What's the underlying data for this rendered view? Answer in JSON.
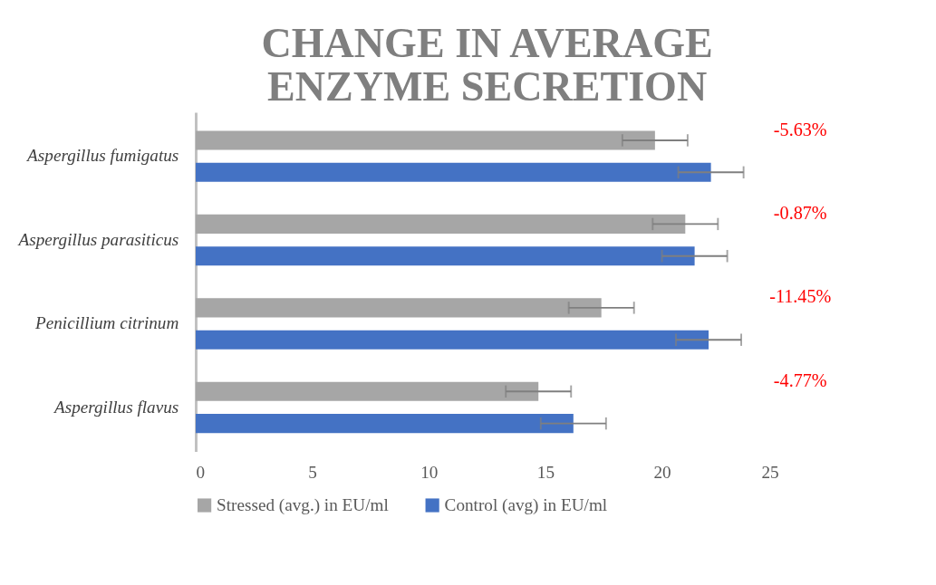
{
  "chart_data": {
    "type": "bar",
    "orientation": "horizontal",
    "title": "CHANGE IN AVERAGE ENZYME SECRETION",
    "categories": [
      "Aspergillus fumigatus",
      "Aspergillus parasiticus",
      "Penicillium citrinum",
      "Aspergillus flavus"
    ],
    "series": [
      {
        "name": "Stressed (avg.) in EU/ml",
        "color": "#a6a6a6",
        "values": [
          19.7,
          21.0,
          17.4,
          14.7
        ],
        "errors": [
          1.4,
          1.4,
          1.4,
          1.4
        ]
      },
      {
        "name": "Control (avg) in EU/ml",
        "color": "#4472c4",
        "values": [
          22.1,
          21.4,
          22.0,
          16.2
        ],
        "errors": [
          1.4,
          1.4,
          1.4,
          1.4
        ]
      }
    ],
    "annotations": [
      "-5.63%",
      "-0.87%",
      "-11.45%",
      "-4.77%"
    ],
    "xlim": [
      0,
      25
    ],
    "xticks": [
      0,
      5,
      10,
      15,
      20,
      25
    ],
    "grid": false,
    "legend": "bottom"
  }
}
